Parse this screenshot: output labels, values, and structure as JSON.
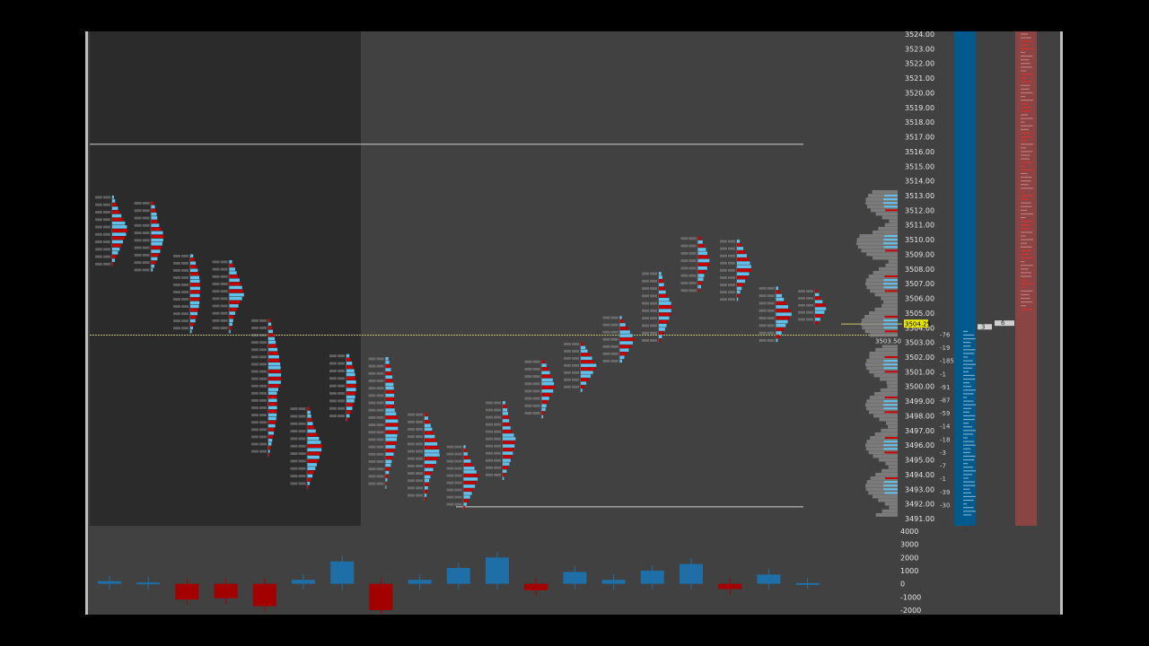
{
  "chart_data": {
    "type": "footprint",
    "title": "",
    "price_axis": {
      "labels": [
        "3524.00",
        "3523.00",
        "3522.00",
        "3521.00",
        "3520.00",
        "3519.00",
        "3518.00",
        "3517.00",
        "3516.00",
        "3515.00",
        "3514.00",
        "3513.00",
        "3512.00",
        "3511.00",
        "3510.00",
        "3509.00",
        "3508.00",
        "3507.00",
        "3506.00",
        "3505.00",
        "3504.00",
        "3503.00",
        "3502.00",
        "3501.00",
        "3500.00",
        "3499.00",
        "3498.00",
        "3497.00",
        "3496.00",
        "3495.00",
        "3494.00",
        "3493.00",
        "3492.00",
        "3491.00"
      ],
      "range": [
        3491,
        3524
      ]
    },
    "delta_axis": {
      "labels": [
        "4000",
        "3000",
        "2000",
        "1000",
        "0",
        "-1000",
        "-2000"
      ],
      "range": [
        -2000,
        4000
      ]
    },
    "last_price_label": "3504.25",
    "vwap_label": "3503.50",
    "vwap_price": 3503.5,
    "last_price": 3504.25,
    "reference_lines": [
      {
        "price": 3516.5,
        "color": "#cfcfcf"
      },
      {
        "price": 3491.8,
        "color": "#cfcfcf"
      }
    ],
    "bars": [
      {
        "high": 3513.0,
        "low": 3508.2
      },
      {
        "high": 3512.6,
        "low": 3507.8
      },
      {
        "high": 3509.0,
        "low": 3503.6
      },
      {
        "high": 3508.6,
        "low": 3503.6
      },
      {
        "high": 3504.6,
        "low": 3495.2
      },
      {
        "high": 3498.6,
        "low": 3493.0
      },
      {
        "high": 3502.2,
        "low": 3497.6
      },
      {
        "high": 3502.0,
        "low": 3493.0
      },
      {
        "high": 3498.2,
        "low": 3492.2
      },
      {
        "high": 3496.0,
        "low": 3491.6
      },
      {
        "high": 3499.0,
        "low": 3493.6
      },
      {
        "high": 3501.8,
        "low": 3497.8
      },
      {
        "high": 3503.0,
        "low": 3499.6
      },
      {
        "high": 3504.8,
        "low": 3501.6
      },
      {
        "high": 3507.8,
        "low": 3503.0
      },
      {
        "high": 3510.2,
        "low": 3506.4
      },
      {
        "high": 3510.0,
        "low": 3505.8
      },
      {
        "high": 3506.8,
        "low": 3503.0
      },
      {
        "high": 3506.6,
        "low": 3504.2
      }
    ],
    "deltas": [
      200,
      100,
      -1200,
      -1100,
      -1700,
      300,
      1700,
      -2000,
      300,
      1200,
      2000,
      -500,
      900,
      300,
      1000,
      1500,
      -400,
      700,
      50
    ],
    "delta_colors": {
      "positive": "#1e6fa8",
      "negative": "#a30000"
    },
    "volume_profile_color": "#8a8a8a",
    "bid_color": "#c40000",
    "ask_color": "#63c0ea"
  },
  "dom": {
    "side_numbers": [
      "-76",
      "-19",
      "-185",
      "-1",
      "-91",
      "-87",
      "-59",
      "-14",
      "-18",
      "-3",
      "-7",
      "-1",
      "-39",
      "-30"
    ],
    "inside_labels": [
      "3",
      "6"
    ],
    "colors": {
      "bid_column": "#005a8c",
      "ask_column": "#8a4444"
    }
  }
}
